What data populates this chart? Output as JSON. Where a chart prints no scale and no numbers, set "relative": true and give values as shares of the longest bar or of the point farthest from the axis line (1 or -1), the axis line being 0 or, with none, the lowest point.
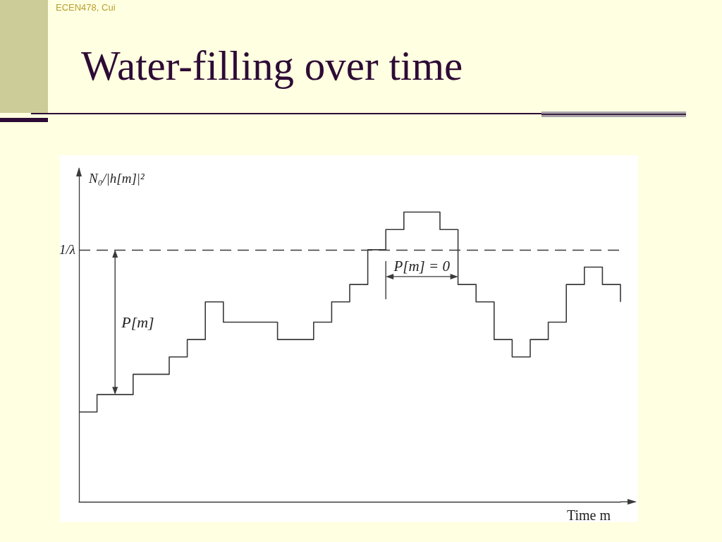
{
  "chart_data": {
    "type": "step",
    "title": "Water-filling over time",
    "xlabel": "Time m",
    "ylabel": "N₀/|h[m]|²",
    "categories": [
      null,
      null,
      null,
      null,
      null,
      null,
      null,
      null,
      null,
      null,
      null,
      null,
      null,
      null,
      null,
      null,
      null,
      null,
      null,
      null,
      null,
      null,
      null,
      null,
      null,
      null,
      null,
      null,
      null,
      null,
      null
    ],
    "values": [
      0.31,
      0.37,
      0.37,
      0.44,
      0.44,
      0.5,
      0.56,
      0.69,
      0.62,
      0.62,
      0.62,
      0.56,
      0.56,
      0.62,
      0.69,
      0.75,
      0.87,
      0.94,
      1,
      1,
      0.94,
      0.75,
      0.69,
      0.56,
      0.5,
      0.56,
      0.62,
      0.75,
      0.81,
      0.75,
      0.69
    ],
    "color": "#3a3a3a",
    "relative": true,
    "marker": "none",
    "grid": false,
    "ref_lines": [
      {
        "axis": "y",
        "value": 0.87,
        "label": "1/λ",
        "line_style": "dashed",
        "color": "#3a3a3a"
      }
    ],
    "annotations": [
      "ECEN478, Cui",
      "P[m]",
      "P[m] = 0"
    ]
  }
}
